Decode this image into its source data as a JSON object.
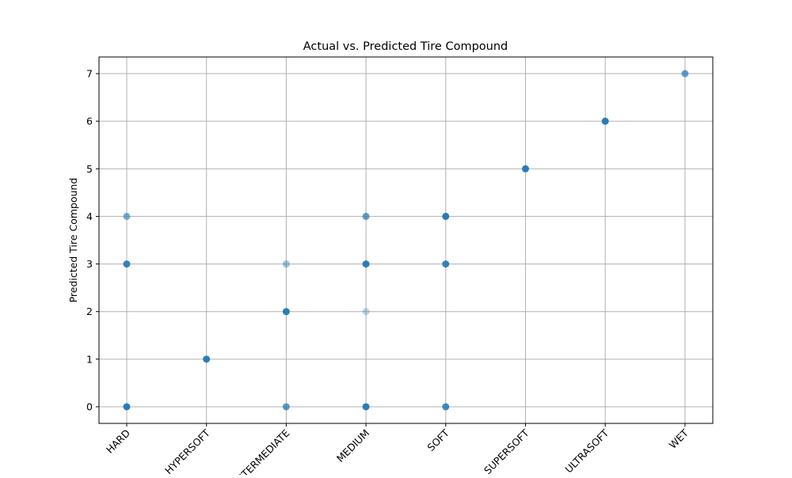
{
  "chart_data": {
    "type": "scatter",
    "title": "Actual vs. Predicted Tire Compound",
    "xlabel": "",
    "ylabel": "Predicted Tire Compound",
    "categories": [
      "HARD",
      "HYPERSOFT",
      "INTERMEDIATE",
      "MEDIUM",
      "SOFT",
      "SUPERSOFT",
      "ULTRASOFT",
      "WET"
    ],
    "ylim": [
      -0.35,
      7.35
    ],
    "yticks": [
      0,
      1,
      2,
      3,
      4,
      5,
      6,
      7
    ],
    "grid": true,
    "point_color": "#1f77b4",
    "points": [
      {
        "x": "HARD",
        "y": 0,
        "alpha": 0.95
      },
      {
        "x": "HARD",
        "y": 3,
        "alpha": 0.9
      },
      {
        "x": "HARD",
        "y": 4,
        "alpha": 0.6
      },
      {
        "x": "HYPERSOFT",
        "y": 1,
        "alpha": 0.95
      },
      {
        "x": "INTERMEDIATE",
        "y": 0,
        "alpha": 0.75
      },
      {
        "x": "INTERMEDIATE",
        "y": 2,
        "alpha": 0.95
      },
      {
        "x": "INTERMEDIATE",
        "y": 3,
        "alpha": 0.45
      },
      {
        "x": "MEDIUM",
        "y": 0,
        "alpha": 0.95
      },
      {
        "x": "MEDIUM",
        "y": 2,
        "alpha": 0.3
      },
      {
        "x": "MEDIUM",
        "y": 3,
        "alpha": 0.95
      },
      {
        "x": "MEDIUM",
        "y": 4,
        "alpha": 0.7
      },
      {
        "x": "SOFT",
        "y": 0,
        "alpha": 0.85
      },
      {
        "x": "SOFT",
        "y": 3,
        "alpha": 0.9
      },
      {
        "x": "SOFT",
        "y": 4,
        "alpha": 0.95
      },
      {
        "x": "SUPERSOFT",
        "y": 5,
        "alpha": 0.95
      },
      {
        "x": "ULTRASOFT",
        "y": 6,
        "alpha": 0.95
      },
      {
        "x": "WET",
        "y": 7,
        "alpha": 0.7
      }
    ]
  }
}
